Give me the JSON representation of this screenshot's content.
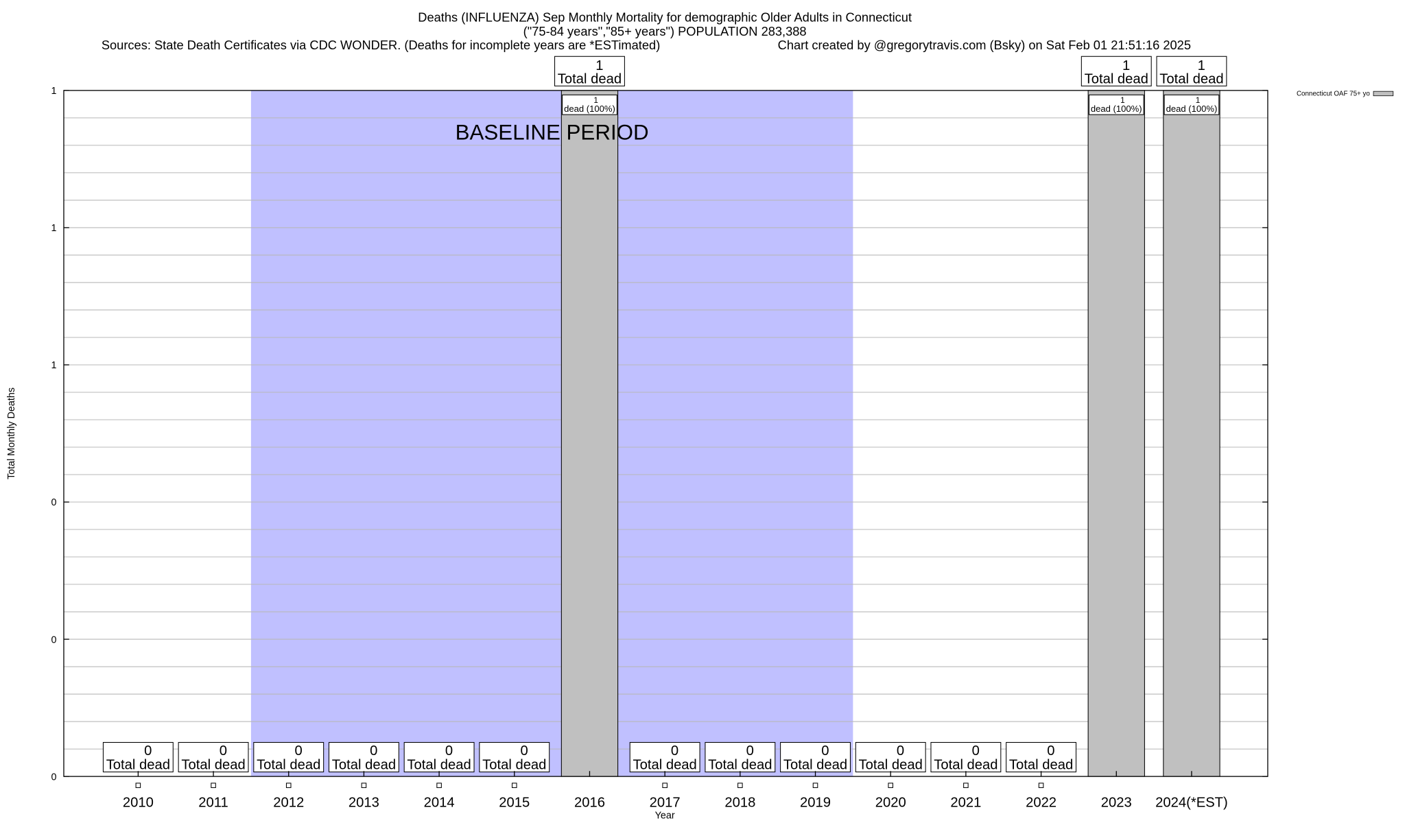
{
  "chart_data": {
    "type": "bar",
    "title": "Deaths (INFLUENZA) Sep Monthly Mortality for demographic Older Adults in Connecticut",
    "subtitle": "(\"75-84 years\",\"85+ years\") POPULATION 283,388",
    "sources": "Sources: State Death Certificates via CDC WONDER. (Deaths for incomplete years are *ESTimated)",
    "credit": "Chart created by @gregorytravis.com (Bsky) on Sat Feb 01 21:51:16 2025",
    "xlabel": "Year",
    "ylabel": "Total Monthly Deaths",
    "ylim": [
      0,
      1
    ],
    "yticks": [
      0,
      0.2,
      0.4,
      0.6,
      0.8,
      1.0
    ],
    "ytick_labels": [
      "0",
      "0",
      "0",
      "1",
      "1",
      "1"
    ],
    "grid": true,
    "categories": [
      "2010",
      "2011",
      "2012",
      "2013",
      "2014",
      "2015",
      "2016",
      "2017",
      "2018",
      "2019",
      "2020",
      "2021",
      "2022",
      "2023",
      "2024(*EST)"
    ],
    "series": [
      {
        "name": "Connecticut OAF 75+ yo",
        "color": "#c0c0c0",
        "values": [
          0,
          0,
          0,
          0,
          0,
          0,
          1,
          0,
          0,
          0,
          0,
          0,
          0,
          1,
          1
        ]
      }
    ],
    "total_label_suffix": "Total dead",
    "bar_label_suffix": "dead (100%)",
    "legend_placement": "top-right",
    "annotation": {
      "text": "BASELINE PERIOD",
      "from": "2012",
      "to": "2019",
      "color": "#c0c0ff"
    }
  }
}
